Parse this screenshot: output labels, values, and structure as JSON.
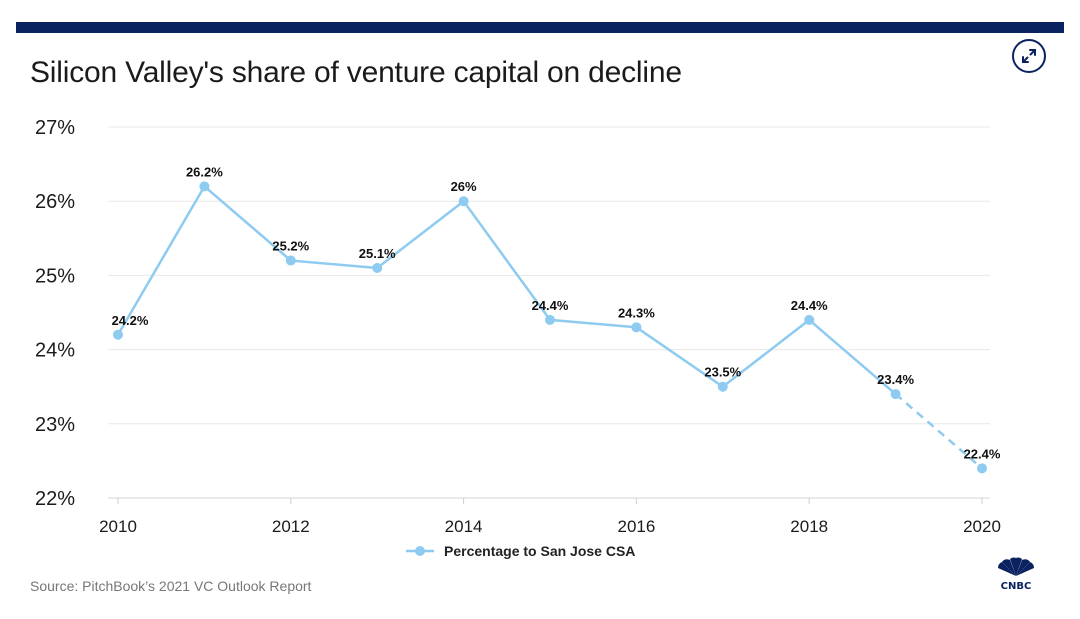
{
  "header": {
    "title": "Silicon Valley's share of venture capital on decline",
    "expand_icon": "expand-arrows-icon"
  },
  "footer": {
    "source": "Source: PitchBook’s 2021 VC Outlook Report",
    "logo_label": "CNBC"
  },
  "colors": {
    "topbar": "#0b2260",
    "line": "#8ecbf0",
    "grid": "#e8e8e8",
    "text": "#1b1b1b"
  },
  "chart_data": {
    "type": "line",
    "title": "Silicon Valley's share of venture capital on decline",
    "xlabel": "",
    "ylabel": "",
    "x": [
      2010,
      2011,
      2012,
      2013,
      2014,
      2015,
      2016,
      2017,
      2018,
      2019,
      2020
    ],
    "series": [
      {
        "name": "Percentage to San Jose CSA",
        "values": [
          24.2,
          26.2,
          25.2,
          25.1,
          26.0,
          24.4,
          24.3,
          23.5,
          24.4,
          23.4,
          22.4
        ],
        "labels": [
          "24.2%",
          "26.2%",
          "25.2%",
          "25.1%",
          "26%",
          "24.4%",
          "24.3%",
          "23.5%",
          "24.4%",
          "23.4%",
          "22.4%"
        ],
        "dashed_from": 2019
      }
    ],
    "ylim": [
      22,
      27
    ],
    "xlim": [
      2010,
      2020
    ],
    "yticks": [
      22,
      23,
      24,
      25,
      26,
      27
    ],
    "ytick_labels": [
      "22%",
      "23%",
      "24%",
      "25%",
      "26%",
      "27%"
    ],
    "xticks": [
      2010,
      2012,
      2014,
      2016,
      2018,
      2020
    ],
    "xtick_labels": [
      "2010",
      "2012",
      "2014",
      "2016",
      "2018",
      "2020"
    ],
    "grid": true,
    "legend_position": "bottom-center"
  }
}
